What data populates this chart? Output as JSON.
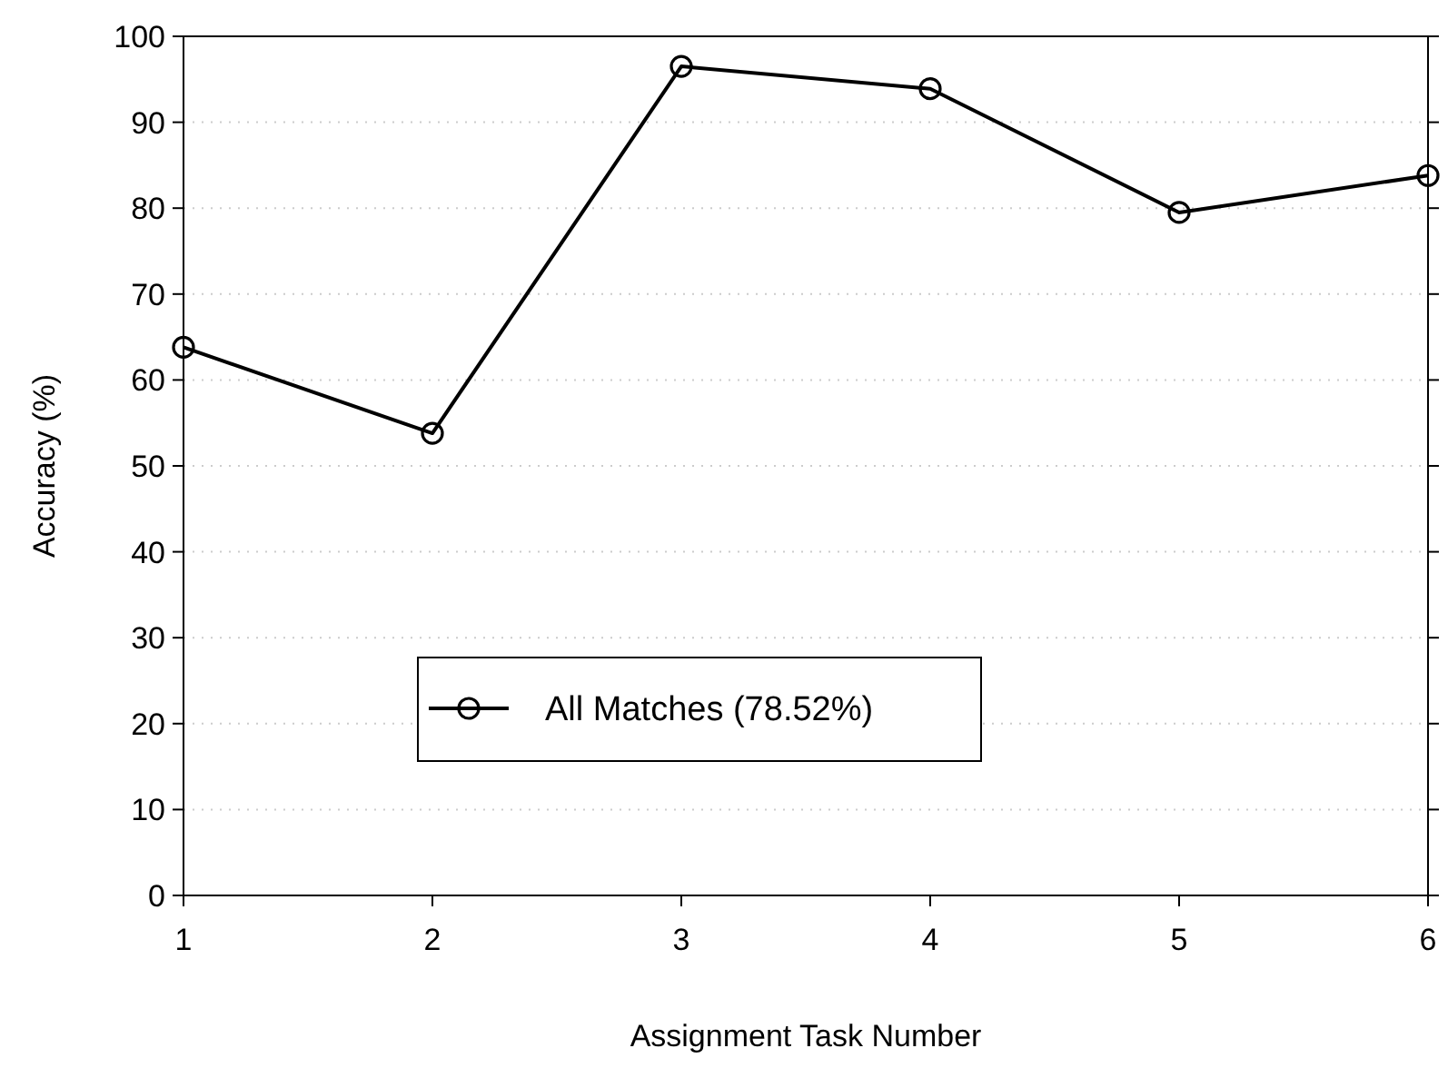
{
  "chart_data": {
    "type": "line",
    "xlabel": "Assignment Task Number",
    "ylabel": "Accuracy (%)",
    "x": [
      1,
      2,
      3,
      4,
      5,
      6
    ],
    "series": [
      {
        "name": "All Matches (78.52%)",
        "color": "#000000",
        "values": [
          63.8,
          53.8,
          96.5,
          93.9,
          79.5,
          83.8
        ]
      }
    ],
    "xlim": [
      1,
      6
    ],
    "xticks": [
      1,
      2,
      3,
      4,
      5,
      6
    ],
    "ylim": [
      0,
      100
    ],
    "yticks": [
      0,
      10,
      20,
      30,
      40,
      50,
      60,
      70,
      80,
      90,
      100
    ],
    "grid": "y",
    "legend": "bottom left",
    "marker": "circle",
    "line_style": "solid"
  }
}
